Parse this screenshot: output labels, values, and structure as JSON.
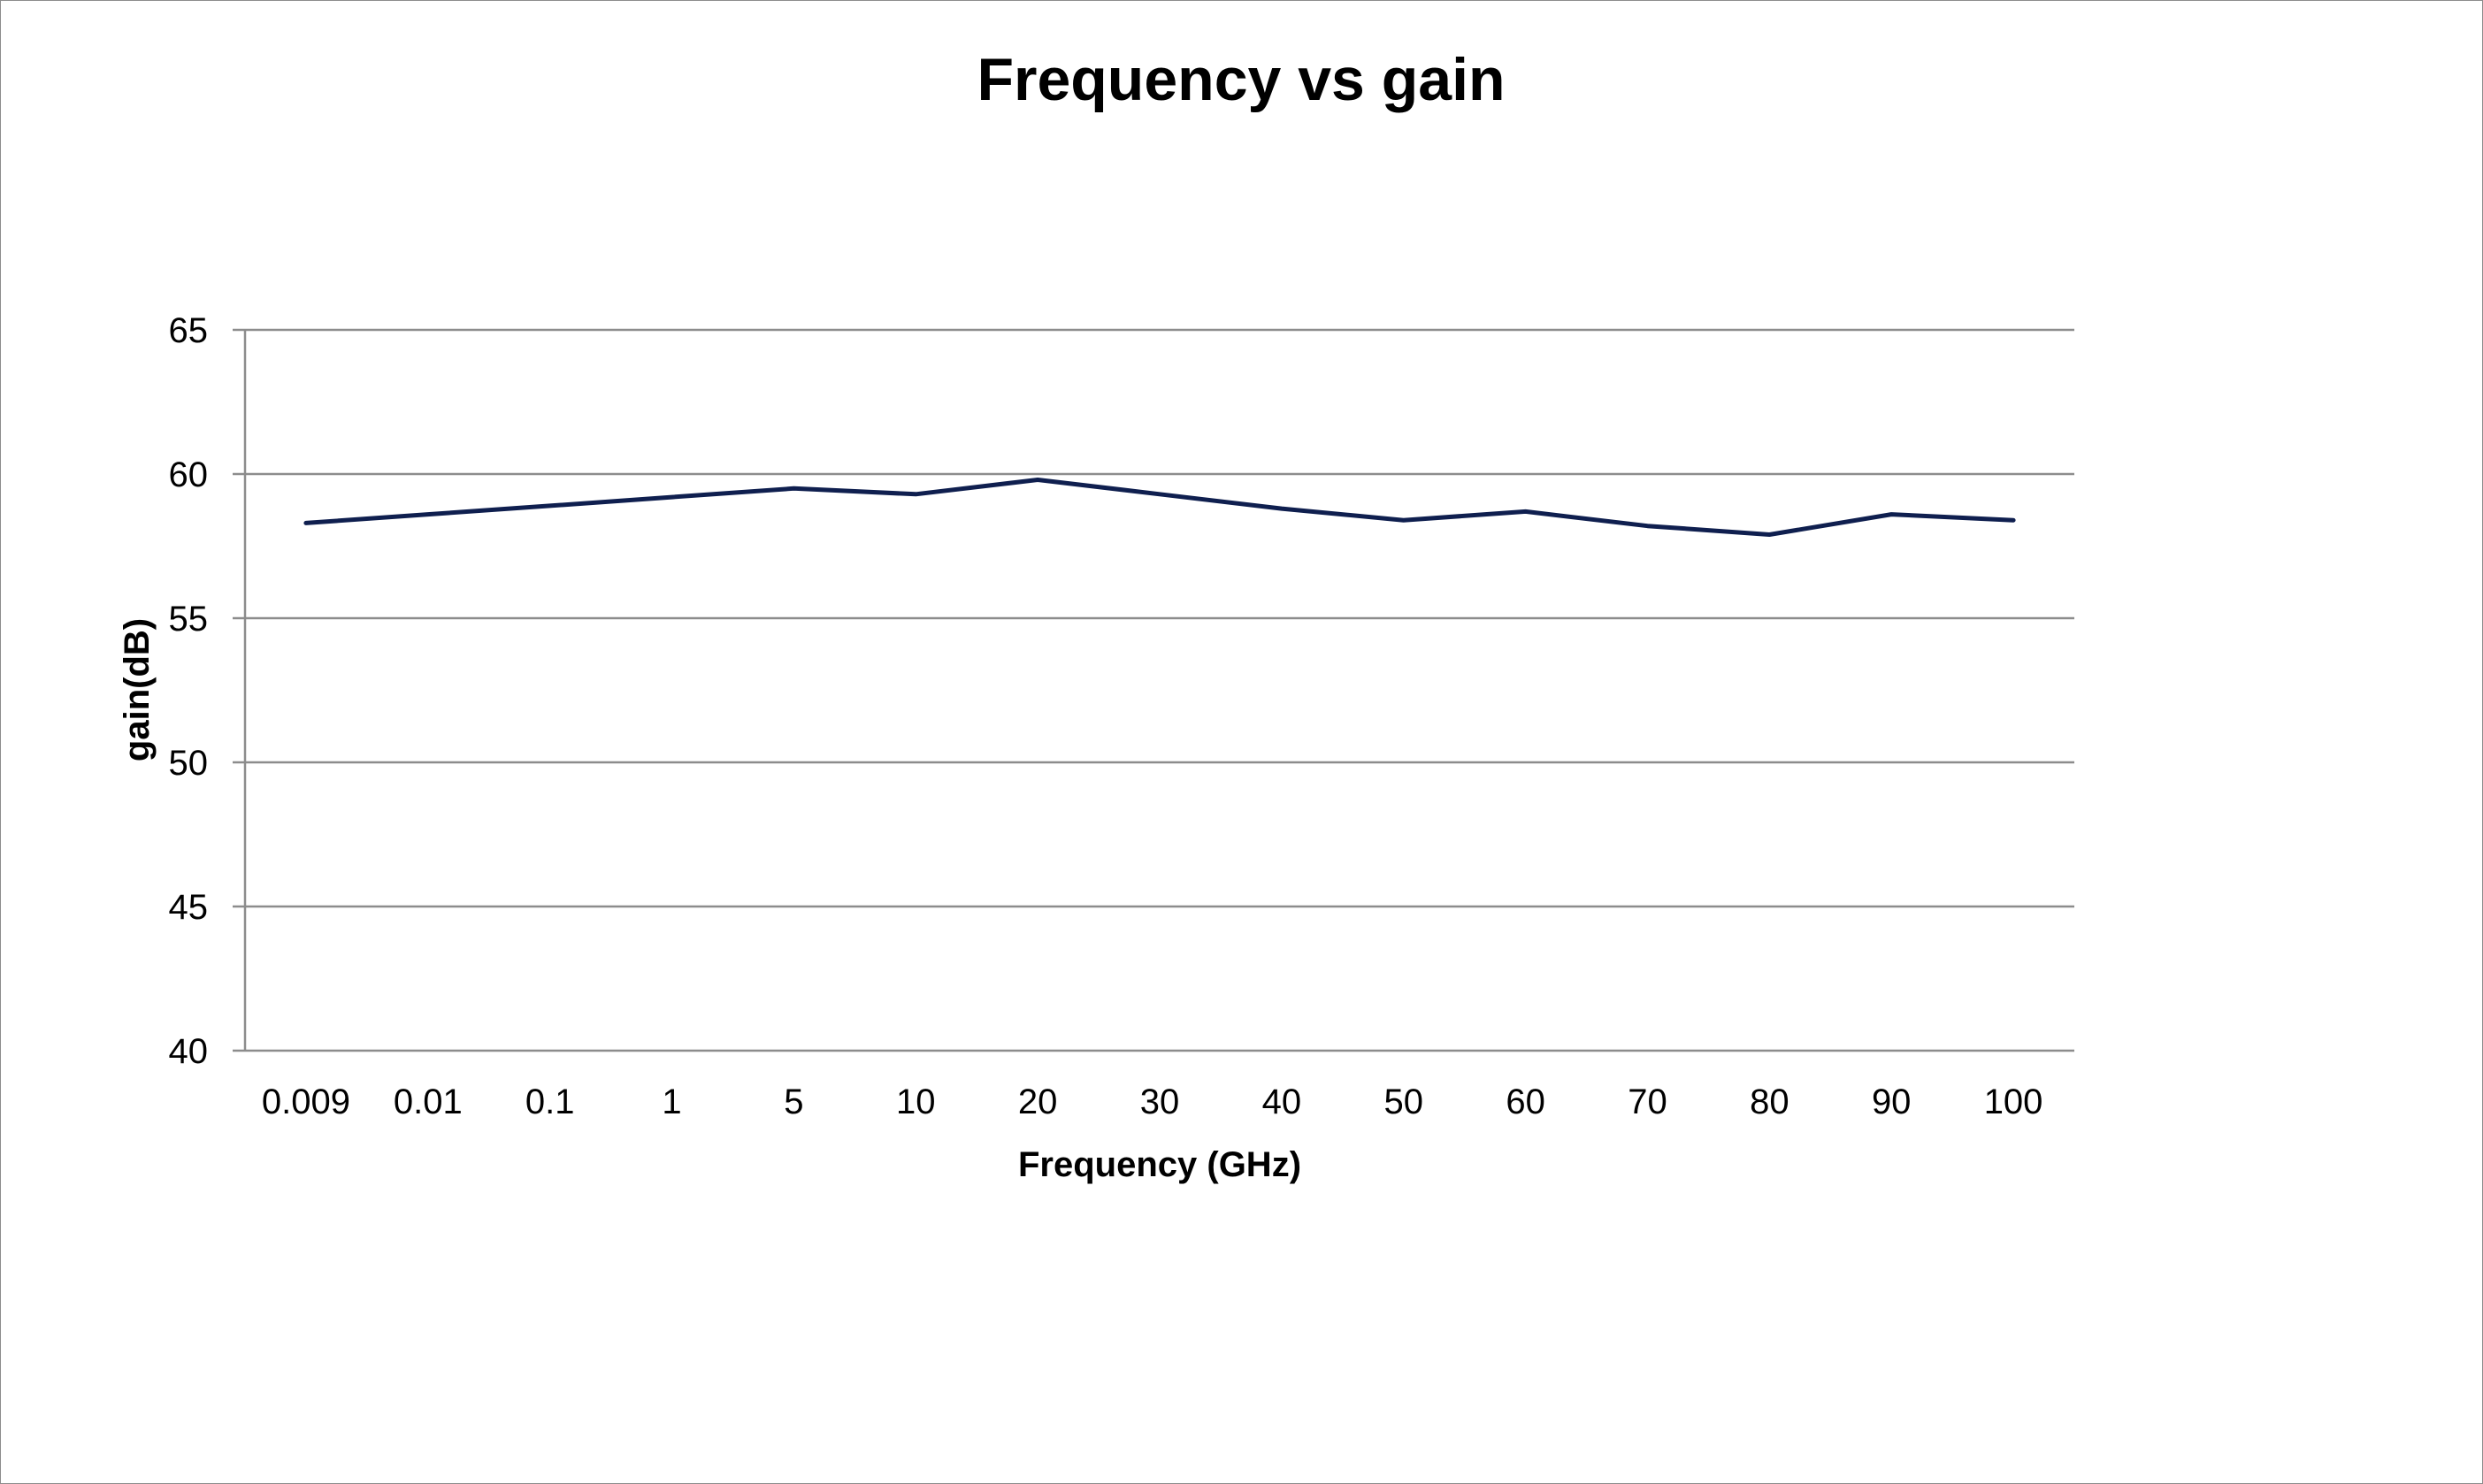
{
  "chart_data": {
    "type": "line",
    "title": "Frequency vs gain",
    "xlabel": "Frequency (GHz)",
    "ylabel": "gain(dB)",
    "categories": [
      "0.009",
      "0.01",
      "0.1",
      "1",
      "5",
      "10",
      "20",
      "30",
      "40",
      "50",
      "60",
      "70",
      "80",
      "90",
      "100"
    ],
    "series": [
      {
        "values": [
          58.3,
          58.6,
          58.9,
          59.2,
          59.5,
          59.3,
          59.8,
          59.3,
          58.8,
          58.4,
          58.7,
          58.2,
          57.9,
          58.6,
          58.4
        ]
      }
    ],
    "ylim": [
      40,
      65
    ],
    "yticks": [
      40,
      45,
      50,
      55,
      60,
      65
    ],
    "grid": true,
    "legend": "none",
    "colors": {
      "line": "#0f1f4f",
      "grid": "#8c8c8c",
      "frame": "#8c8c8c"
    }
  }
}
